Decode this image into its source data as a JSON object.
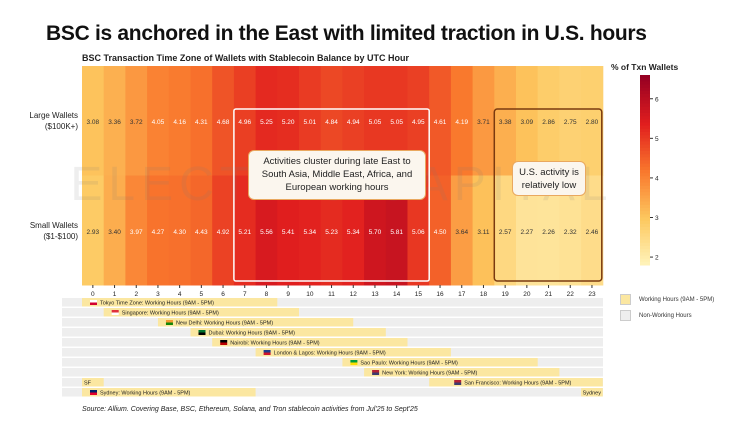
{
  "title": "BSC is anchored in the East with limited traction in U.S. hours",
  "watermark": "ELECTRIC CAPITAL",
  "chart_data": {
    "type": "heatmap",
    "title": "BSC Transaction Time Zone of Wallets with Stablecoin Balance by UTC Hour",
    "x": [
      0,
      1,
      2,
      3,
      4,
      5,
      6,
      7,
      8,
      9,
      10,
      11,
      12,
      13,
      14,
      15,
      16,
      17,
      18,
      19,
      20,
      21,
      22,
      23
    ],
    "rows": [
      {
        "name": "Large Wallets ($100K+)",
        "values": [
          3.08,
          3.36,
          3.72,
          4.05,
          4.16,
          4.31,
          4.68,
          4.96,
          5.25,
          5.2,
          5.01,
          4.84,
          4.94,
          5.05,
          5.05,
          4.95,
          4.61,
          4.19,
          3.71,
          3.38,
          3.09,
          2.86,
          2.75,
          2.8
        ]
      },
      {
        "name": "Small Wallets ($1-$100)",
        "values": [
          2.93,
          3.4,
          3.97,
          4.27,
          4.3,
          4.43,
          4.92,
          5.21,
          5.56,
          5.41,
          5.34,
          5.23,
          5.34,
          5.7,
          5.81,
          5.06,
          4.5,
          3.64,
          3.11,
          2.57,
          2.27,
          2.26,
          2.32,
          2.46
        ]
      }
    ],
    "colorbar": {
      "title": "% of Txn Wallets",
      "ticks": [
        2,
        3,
        4,
        5,
        6
      ],
      "range": [
        1.8,
        6.6
      ]
    },
    "annotations": [
      {
        "text": "Activities cluster during late East to South Asia, Middle East, Africa, and European working hours",
        "hours": [
          7,
          15
        ]
      },
      {
        "text": "U.S. activity is relatively low",
        "hours": [
          19,
          23
        ]
      }
    ],
    "timezones": [
      {
        "label": "Tokyo Time Zone: Working Hours (9AM - 5PM)",
        "spans": [
          [
            0,
            9
          ]
        ],
        "flag": [
          "#ffffff",
          "#d3002f"
        ]
      },
      {
        "label": "Singapore: Working Hours (9AM - 5PM)",
        "spans": [
          [
            1,
            10
          ]
        ],
        "flag": [
          "#e0303a",
          "#ffffff"
        ]
      },
      {
        "label": "New Delhi: Working Hours (9AM - 5PM)",
        "spans": [
          [
            3.5,
            12.5
          ]
        ],
        "flag": [
          "#f49a32",
          "#138808"
        ]
      },
      {
        "label": "Dubai: Working Hours (9AM - 5PM)",
        "spans": [
          [
            5,
            14
          ]
        ],
        "flag": [
          "#00732f",
          "#000000"
        ]
      },
      {
        "label": "Nairobi: Working Hours (9AM - 5PM)",
        "spans": [
          [
            6,
            15
          ]
        ],
        "flag": [
          "#000000",
          "#bb0000"
        ]
      },
      {
        "label": "London & Lagos: Working Hours (9AM - 5PM)",
        "spans": [
          [
            8,
            17
          ]
        ],
        "flag": [
          "#1f3d8a",
          "#cf142b"
        ]
      },
      {
        "label": "Sao Paulo: Working Hours (9AM - 5PM)",
        "spans": [
          [
            12,
            21
          ]
        ],
        "flag": [
          "#009c3b",
          "#ffdf00"
        ]
      },
      {
        "label": "New York: Working Hours (9AM - 5PM)",
        "spans": [
          [
            13,
            22
          ]
        ],
        "flag": [
          "#b22234",
          "#3c3b6e"
        ]
      },
      {
        "label": "San Francisco: Working Hours (9AM - 5PM)",
        "spans": [
          [
            16,
            24
          ],
          [
            0,
            1
          ]
        ],
        "wrap_label": "SF",
        "flag": [
          "#b22234",
          "#3c3b6e"
        ]
      },
      {
        "label": "Sydney: Working Hours (9AM - 5PM)",
        "spans": [
          [
            0,
            8
          ],
          [
            23,
            24
          ]
        ],
        "wrap_label": "Sydney",
        "flag": [
          "#012169",
          "#e4002b"
        ]
      }
    ],
    "legend": [
      {
        "label": "Working Hours (9AM - 5PM)",
        "color": "#fbe7a1"
      },
      {
        "label": "Non-Working Hours",
        "color": "#eeeeee"
      }
    ]
  },
  "source": "Source: Allium. Covering Base, BSC, Ethereum, Solana, and Tron stablecoin activities from Jul'25 to Sept'25"
}
